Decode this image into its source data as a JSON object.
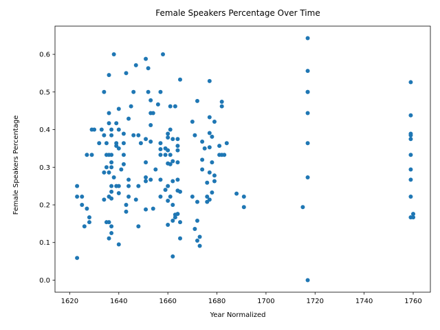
{
  "chart_data": {
    "type": "scatter",
    "title": "Female Speakers Percentage Over Time",
    "xlabel": "Year Normalized",
    "ylabel": "Female Speakers Percentage",
    "xlim": [
      1614,
      1767
    ],
    "ylim": [
      -0.032,
      0.675
    ],
    "xticks": [
      1620,
      1640,
      1660,
      1680,
      1700,
      1720,
      1740,
      1760
    ],
    "yticks": [
      0.0,
      0.1,
      0.2,
      0.3,
      0.4,
      0.5,
      0.6
    ],
    "ytick_labels": [
      "0.0",
      "0.1",
      "0.2",
      "0.3",
      "0.4",
      "0.5",
      "0.6"
    ],
    "grid": false,
    "color": "#1f77b4",
    "points": [
      [
        1623,
        0.25
      ],
      [
        1623,
        0.222
      ],
      [
        1623,
        0.059
      ],
      [
        1625,
        0.222
      ],
      [
        1625,
        0.2
      ],
      [
        1626,
        0.143
      ],
      [
        1627,
        0.333
      ],
      [
        1627,
        0.19
      ],
      [
        1628,
        0.167
      ],
      [
        1628,
        0.154
      ],
      [
        1629,
        0.4
      ],
      [
        1629,
        0.333
      ],
      [
        1630,
        0.4
      ],
      [
        1632,
        0.364
      ],
      [
        1633,
        0.4
      ],
      [
        1634,
        0.5
      ],
      [
        1634,
        0.385
      ],
      [
        1634,
        0.286
      ],
      [
        1634,
        0.214
      ],
      [
        1635,
        0.364
      ],
      [
        1635,
        0.333
      ],
      [
        1635,
        0.3
      ],
      [
        1635,
        0.154
      ],
      [
        1636,
        0.545
      ],
      [
        1636,
        0.444
      ],
      [
        1636,
        0.417
      ],
      [
        1636,
        0.333
      ],
      [
        1636,
        0.286
      ],
      [
        1636,
        0.222
      ],
      [
        1636,
        0.154
      ],
      [
        1636,
        0.111
      ],
      [
        1637,
        0.4
      ],
      [
        1637,
        0.385
      ],
      [
        1637,
        0.333
      ],
      [
        1637,
        0.313
      ],
      [
        1637,
        0.3
      ],
      [
        1637,
        0.25
      ],
      [
        1637,
        0.235
      ],
      [
        1637,
        0.217
      ],
      [
        1637,
        0.143
      ],
      [
        1637,
        0.125
      ],
      [
        1638,
        0.6
      ],
      [
        1638,
        0.273
      ],
      [
        1639,
        0.417
      ],
      [
        1639,
        0.364
      ],
      [
        1639,
        0.357
      ],
      [
        1639,
        0.25
      ],
      [
        1640,
        0.455
      ],
      [
        1640,
        0.4
      ],
      [
        1640,
        0.35
      ],
      [
        1640,
        0.25
      ],
      [
        1640,
        0.231
      ],
      [
        1640,
        0.095
      ],
      [
        1641,
        0.294
      ],
      [
        1642,
        0.389
      ],
      [
        1642,
        0.364
      ],
      [
        1642,
        0.333
      ],
      [
        1642,
        0.308
      ],
      [
        1643,
        0.55
      ],
      [
        1643,
        0.2
      ],
      [
        1643,
        0.182
      ],
      [
        1644,
        0.429
      ],
      [
        1644,
        0.267
      ],
      [
        1644,
        0.25
      ],
      [
        1644,
        0.222
      ],
      [
        1645,
        0.462
      ],
      [
        1646,
        0.5
      ],
      [
        1646,
        0.385
      ],
      [
        1647,
        0.571
      ],
      [
        1647,
        0.214
      ],
      [
        1648,
        0.385
      ],
      [
        1648,
        0.25
      ],
      [
        1648,
        0.143
      ],
      [
        1649,
        0.364
      ],
      [
        1651,
        0.588
      ],
      [
        1651,
        0.375
      ],
      [
        1651,
        0.313
      ],
      [
        1651,
        0.273
      ],
      [
        1651,
        0.263
      ],
      [
        1651,
        0.188
      ],
      [
        1652,
        0.563
      ],
      [
        1652,
        0.5
      ],
      [
        1653,
        0.478
      ],
      [
        1653,
        0.444
      ],
      [
        1653,
        0.412
      ],
      [
        1653,
        0.368
      ],
      [
        1653,
        0.267
      ],
      [
        1654,
        0.444
      ],
      [
        1654,
        0.19
      ],
      [
        1655,
        0.294
      ],
      [
        1656,
        0.467
      ],
      [
        1657,
        0.5
      ],
      [
        1657,
        0.364
      ],
      [
        1657,
        0.348
      ],
      [
        1657,
        0.333
      ],
      [
        1657,
        0.267
      ],
      [
        1657,
        0.222
      ],
      [
        1658,
        0.6
      ],
      [
        1659,
        0.35
      ],
      [
        1659,
        0.333
      ],
      [
        1659,
        0.24
      ],
      [
        1660,
        0.389
      ],
      [
        1660,
        0.379
      ],
      [
        1660,
        0.345
      ],
      [
        1660,
        0.31
      ],
      [
        1660,
        0.25
      ],
      [
        1660,
        0.211
      ],
      [
        1660,
        0.147
      ],
      [
        1661,
        0.462
      ],
      [
        1661,
        0.4
      ],
      [
        1661,
        0.333
      ],
      [
        1661,
        0.308
      ],
      [
        1661,
        0.222
      ],
      [
        1662,
        0.375
      ],
      [
        1662,
        0.316
      ],
      [
        1662,
        0.263
      ],
      [
        1662,
        0.2
      ],
      [
        1662,
        0.063
      ],
      [
        1662,
        0.158
      ],
      [
        1663,
        0.462
      ],
      [
        1663,
        0.174
      ],
      [
        1663,
        0.167
      ],
      [
        1664,
        0.375
      ],
      [
        1664,
        0.357
      ],
      [
        1664,
        0.345
      ],
      [
        1664,
        0.313
      ],
      [
        1664,
        0.267
      ],
      [
        1664,
        0.238
      ],
      [
        1664,
        0.176
      ],
      [
        1665,
        0.533
      ],
      [
        1665,
        0.235
      ],
      [
        1665,
        0.154
      ],
      [
        1665,
        0.111
      ],
      [
        1670,
        0.421
      ],
      [
        1670,
        0.222
      ],
      [
        1671,
        0.385
      ],
      [
        1671,
        0.136
      ],
      [
        1672,
        0.476
      ],
      [
        1672,
        0.208
      ],
      [
        1672,
        0.158
      ],
      [
        1672,
        0.105
      ],
      [
        1673,
        0.115
      ],
      [
        1673,
        0.091
      ],
      [
        1674,
        0.368
      ],
      [
        1674,
        0.32
      ],
      [
        1674,
        0.294
      ],
      [
        1675,
        0.35
      ],
      [
        1676,
        0.259
      ],
      [
        1676,
        0.222
      ],
      [
        1676,
        0.208
      ],
      [
        1677,
        0.529
      ],
      [
        1677,
        0.433
      ],
      [
        1677,
        0.391
      ],
      [
        1677,
        0.353
      ],
      [
        1677,
        0.286
      ],
      [
        1677,
        0.214
      ],
      [
        1678,
        0.381
      ],
      [
        1678,
        0.313
      ],
      [
        1678,
        0.233
      ],
      [
        1679,
        0.421
      ],
      [
        1679,
        0.278
      ],
      [
        1679,
        0.263
      ],
      [
        1681,
        0.357
      ],
      [
        1681,
        0.333
      ],
      [
        1682,
        0.474
      ],
      [
        1682,
        0.462
      ],
      [
        1682,
        0.333
      ],
      [
        1683,
        0.333
      ],
      [
        1684,
        0.364
      ],
      [
        1688,
        0.23
      ],
      [
        1691,
        0.222
      ],
      [
        1691,
        0.194
      ],
      [
        1715,
        0.194
      ],
      [
        1717,
        0.643
      ],
      [
        1717,
        0.556
      ],
      [
        1717,
        0.5
      ],
      [
        1717,
        0.5
      ],
      [
        1717,
        0.444
      ],
      [
        1717,
        0.364
      ],
      [
        1717,
        0.273
      ],
      [
        1717,
        0.0
      ],
      [
        1759,
        0.526
      ],
      [
        1759,
        0.438
      ],
      [
        1759,
        0.389
      ],
      [
        1759,
        0.385
      ],
      [
        1759,
        0.375
      ],
      [
        1759,
        0.333
      ],
      [
        1759,
        0.294
      ],
      [
        1759,
        0.267
      ],
      [
        1759,
        0.222
      ],
      [
        1759,
        0.167
      ],
      [
        1760,
        0.176
      ],
      [
        1760,
        0.167
      ]
    ]
  }
}
